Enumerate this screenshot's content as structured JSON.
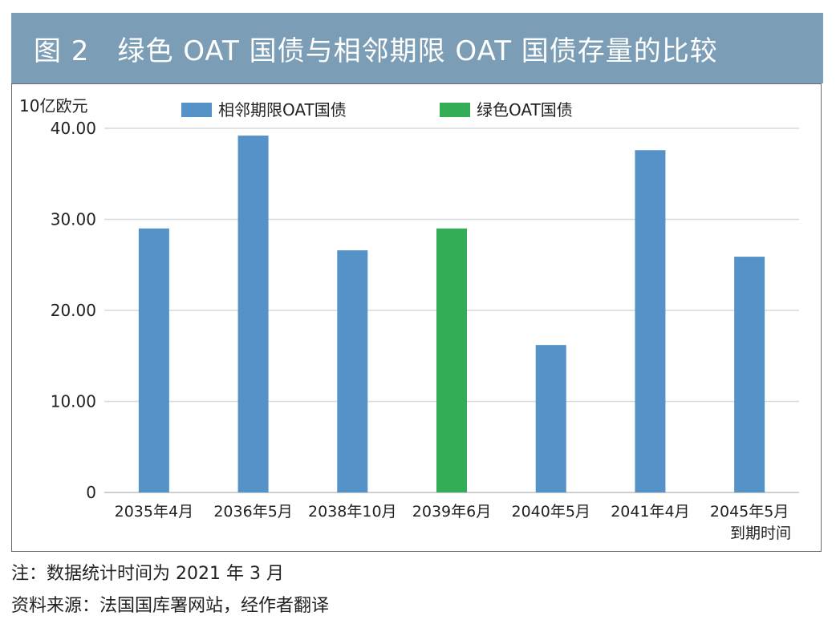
{
  "header": {
    "title": "图 2　绿色 OAT 国债与相邻期限 OAT 国债存量的比较"
  },
  "notes": {
    "note": "注：数据统计时间为 2021 年 3 月",
    "source": "资料来源：法国国库署网站，经作者翻译"
  },
  "colors": {
    "banner": "#7b9db5",
    "adjacent": "#5592c8",
    "green": "#35ad56",
    "grid": "#d9d9d9"
  },
  "chart_data": {
    "type": "bar",
    "ylabel": "10亿欧元",
    "xlabel": "到期时间",
    "ylim": [
      0,
      40
    ],
    "yticks": [
      "0",
      "10.00",
      "20.00",
      "30.00",
      "40.00"
    ],
    "ytick_values": [
      0,
      10,
      20,
      30,
      40
    ],
    "grid": true,
    "legend_position": "top",
    "categories": [
      "2035年4月",
      "2036年5月",
      "2038年10月",
      "2039年6月",
      "2040年5月",
      "2041年4月",
      "2045年5月"
    ],
    "values": [
      29.0,
      39.2,
      26.6,
      29.0,
      16.2,
      37.6,
      25.9
    ],
    "series": [
      {
        "name": "相邻期限OAT国债",
        "color": "#5592c8",
        "indices": [
          0,
          1,
          2,
          4,
          5,
          6
        ]
      },
      {
        "name": "绿色OAT国债",
        "color": "#35ad56",
        "indices": [
          3
        ]
      }
    ]
  }
}
